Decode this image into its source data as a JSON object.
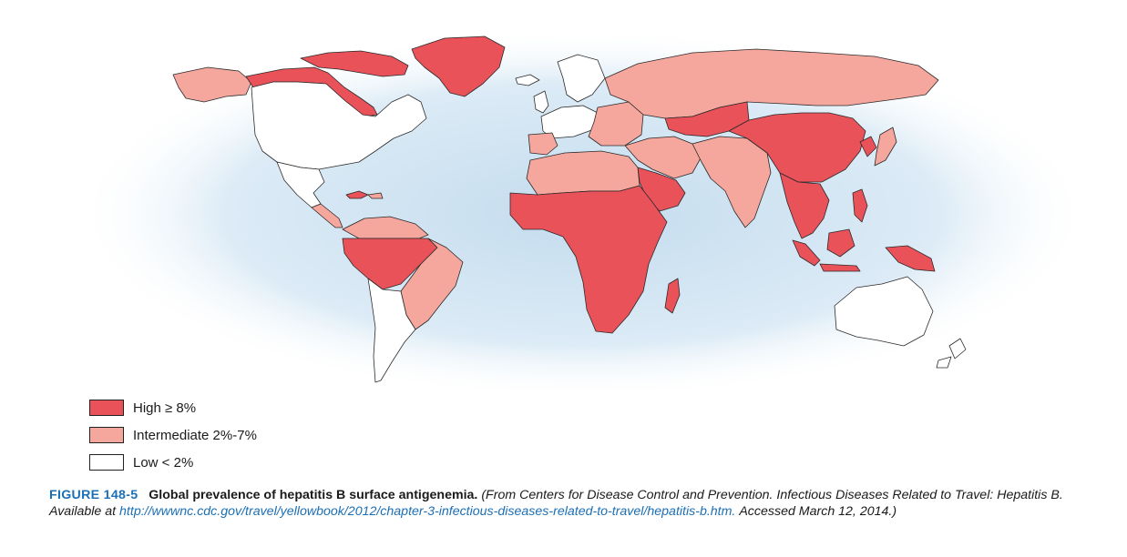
{
  "colors": {
    "high": "#ea525a",
    "intermediate": "#f5a79e",
    "low": "#ffffff",
    "ocean": "#d9e9f4",
    "border": "#2a2a2a",
    "accent": "#1c6fb5"
  },
  "legend": {
    "items": [
      {
        "label": "High ≥ 8%",
        "level": "high"
      },
      {
        "label": "Intermediate 2%-7%",
        "level": "intermediate"
      },
      {
        "label": "Low < 2%",
        "level": "low"
      }
    ]
  },
  "caption": {
    "figure_number": "FIGURE 148-5",
    "title": "Global prevalence of hepatitis B surface antigenemia.",
    "source_before_link": "(From Centers for Disease Control and Prevention. Infectious Diseases Related to Travel: Hepatitis B. Available at",
    "link": "http://wwwnc.cdc.gov/travel/yellowbook/2012/chapter-3-infectious-diseases-related-to-travel/hepatitis-b.htm.",
    "source_after_link": "Accessed March 12, 2014.)"
  }
}
